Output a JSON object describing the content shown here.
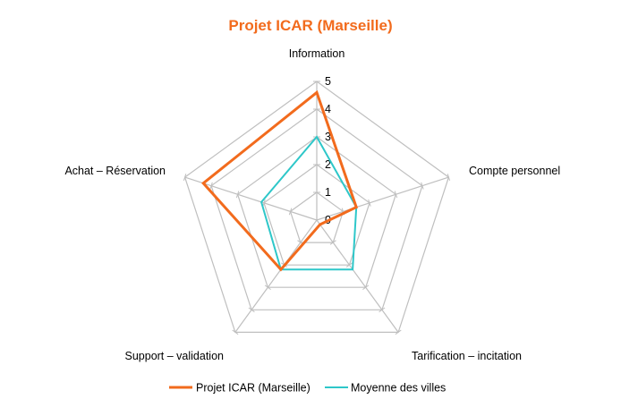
{
  "chart_data": {
    "type": "radar",
    "title": "Projet ICAR (Marseille)",
    "axes": [
      "Information",
      "Compte personnel",
      "Tarification – incitation",
      "Support – validation",
      "Achat – Réservation"
    ],
    "rlim": [
      0,
      5
    ],
    "ticks": [
      "0",
      "1",
      "2",
      "3",
      "4",
      "5"
    ],
    "grid": true,
    "legend_position": "bottom",
    "series": [
      {
        "name": "Projet ICAR (Marseille)",
        "values": [
          4.6,
          1.5,
          0.2,
          2.2,
          4.3
        ]
      },
      {
        "name": "Moyenne des villes",
        "values": [
          3.0,
          1.5,
          2.2,
          2.2,
          2.1
        ]
      }
    ]
  },
  "colors": {
    "title": "#F26B1D",
    "series": [
      "#F26B1D",
      "#2EC7C9"
    ],
    "grid": "#BFBFBF"
  }
}
